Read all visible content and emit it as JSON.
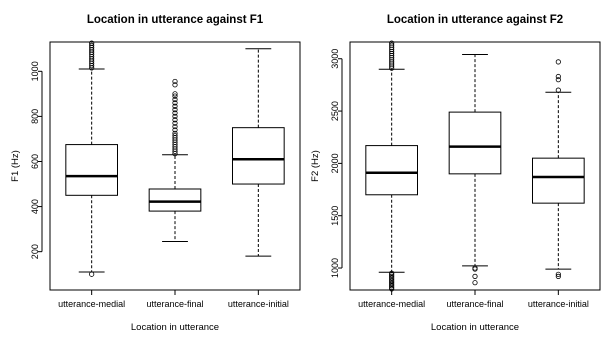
{
  "chart_data": [
    {
      "type": "boxplot",
      "title": "Location in utterance against F1",
      "xlabel": "Location in utterance",
      "ylabel": "F1 (Hz)",
      "ylim": [
        30,
        1130
      ],
      "yticks": [
        200,
        400,
        600,
        800,
        1000
      ],
      "categories": [
        "utterance-medial",
        "utterance-final",
        "utterance-initial"
      ],
      "boxes": [
        {
          "whisker_low": 110,
          "q1": 450,
          "median": 535,
          "q3": 675,
          "whisker_high": 1010,
          "outliers": [
            100,
            1015,
            1025,
            1035,
            1045,
            1055,
            1065,
            1075,
            1085,
            1095,
            1105,
            1115,
            1125
          ]
        },
        {
          "whisker_low": 245,
          "q1": 380,
          "median": 422,
          "q3": 478,
          "whisker_high": 630,
          "outliers": [
            635,
            645,
            655,
            665,
            675,
            685,
            695,
            705,
            715,
            725,
            740,
            755,
            770,
            785,
            800,
            815,
            830,
            845,
            860,
            875,
            890,
            900,
            940,
            955
          ]
        },
        {
          "whisker_low": 180,
          "q1": 500,
          "median": 610,
          "q3": 750,
          "whisker_high": 1100,
          "outliers": []
        }
      ]
    },
    {
      "type": "boxplot",
      "title": "Location in utterance against F2",
      "xlabel": "Location in utterance",
      "ylabel": "F2 (Hz)",
      "ylim": [
        790,
        3160
      ],
      "yticks": [
        1000,
        1500,
        2000,
        2500,
        3000
      ],
      "categories": [
        "utterance-medial",
        "utterance-final",
        "utterance-initial"
      ],
      "boxes": [
        {
          "whisker_low": 960,
          "q1": 1700,
          "median": 1910,
          "q3": 2170,
          "whisker_high": 2900,
          "outliers": [
            800,
            815,
            830,
            845,
            860,
            875,
            890,
            905,
            920,
            935,
            950,
            2910,
            2930,
            2950,
            2970,
            2990,
            3010,
            3030,
            3050,
            3070,
            3090,
            3110,
            3130,
            3150
          ]
        },
        {
          "whisker_low": 1020,
          "q1": 1900,
          "median": 2160,
          "q3": 2490,
          "whisker_high": 3040,
          "outliers": [
            990,
            1000,
            920,
            860
          ]
        },
        {
          "whisker_low": 990,
          "q1": 1620,
          "median": 1870,
          "q3": 2050,
          "whisker_high": 2680,
          "outliers": [
            920,
            940,
            2700,
            2800,
            2830,
            2970
          ]
        }
      ]
    }
  ]
}
